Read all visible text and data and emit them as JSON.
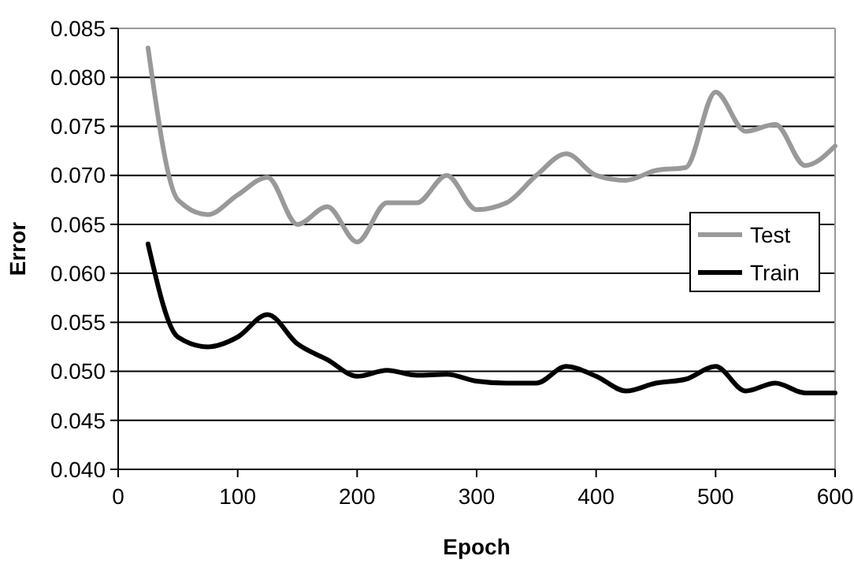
{
  "chart_data": {
    "type": "line",
    "xlabel": "Epoch",
    "ylabel": "Error",
    "x": [
      25,
      50,
      75,
      100,
      125,
      150,
      175,
      200,
      225,
      250,
      275,
      300,
      325,
      350,
      375,
      400,
      425,
      450,
      475,
      500,
      525,
      550,
      575,
      600
    ],
    "series": [
      {
        "name": "Test",
        "color": "#999999",
        "values": [
          0.083,
          0.0675,
          0.066,
          0.068,
          0.0698,
          0.065,
          0.0668,
          0.0632,
          0.0672,
          0.0672,
          0.07,
          0.0665,
          0.0672,
          0.07,
          0.0722,
          0.07,
          0.0695,
          0.0705,
          0.0708,
          0.0785,
          0.0745,
          0.0752,
          0.071,
          0.073
        ]
      },
      {
        "name": "Train",
        "color": "#000000",
        "values": [
          0.063,
          0.0535,
          0.0525,
          0.0535,
          0.0558,
          0.0528,
          0.0512,
          0.0495,
          0.0501,
          0.0496,
          0.0497,
          0.049,
          0.0488,
          0.0488,
          0.0505,
          0.0495,
          0.048,
          0.0488,
          0.0492,
          0.0505,
          0.048,
          0.0488,
          0.0478,
          0.0478
        ]
      }
    ],
    "xlim": [
      0,
      600
    ],
    "xticks": [
      0,
      100,
      200,
      300,
      400,
      500,
      600
    ],
    "ylim": [
      0.04,
      0.085
    ],
    "yticks": [
      {
        "value": 0.04,
        "label": "0.040"
      },
      {
        "value": 0.045,
        "label": "0.045"
      },
      {
        "value": 0.05,
        "label": "0.050"
      },
      {
        "value": 0.055,
        "label": "0.055"
      },
      {
        "value": 0.06,
        "label": "0.060"
      },
      {
        "value": 0.065,
        "label": "0.065"
      },
      {
        "value": 0.07,
        "label": "0.070"
      },
      {
        "value": 0.075,
        "label": "0.075"
      },
      {
        "value": 0.08,
        "label": "0.080"
      },
      {
        "value": 0.085,
        "label": "0.085"
      }
    ],
    "grid": "y",
    "legend": "right",
    "line_style": "solid",
    "marker": "none"
  }
}
